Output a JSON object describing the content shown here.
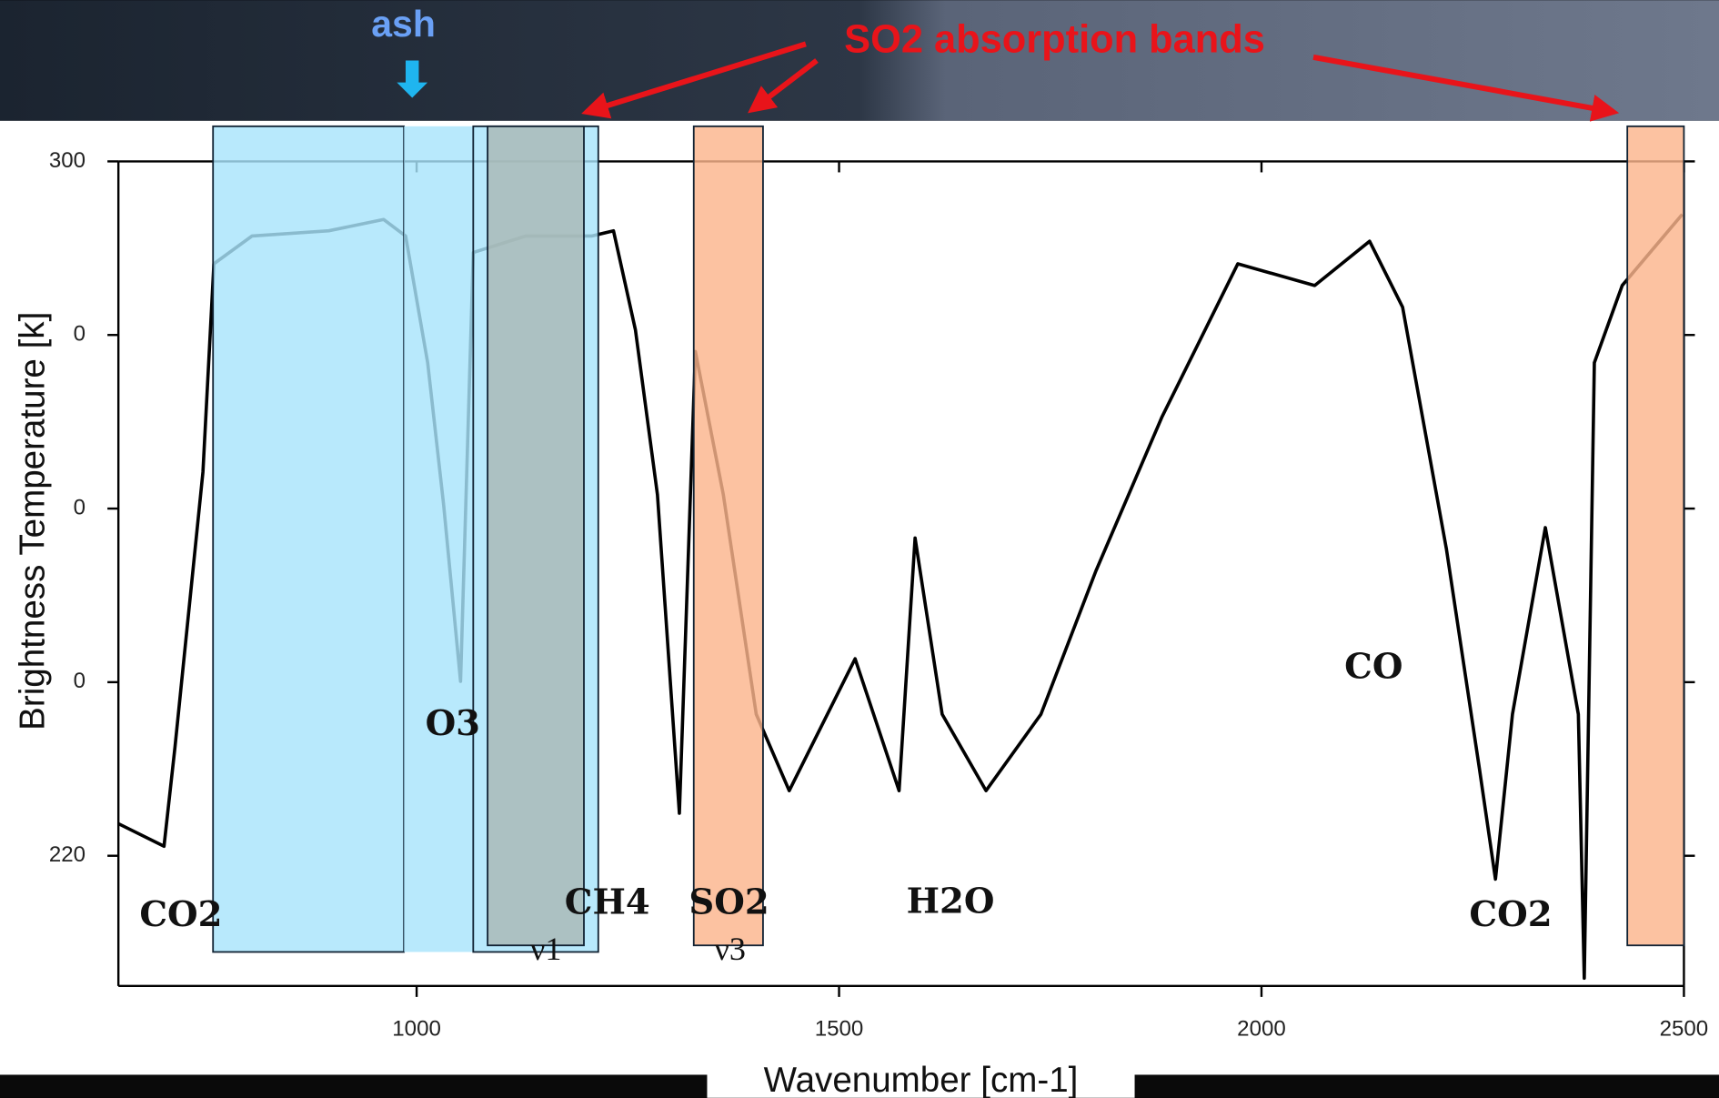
{
  "chart_data": {
    "type": "line",
    "title": "SO2 absorption bands",
    "top_label": "ash",
    "x_label": "Wavenumber [cm-1]",
    "y_label": "Brightness Temperature [k]",
    "xlim": [
      647,
      2500
    ],
    "ylim": [
      205,
      300
    ],
    "xticks": [
      1000,
      1500,
      2000,
      2500
    ],
    "yticks": [
      300,
      {
        "value": 280,
        "label": "0"
      },
      {
        "value": 260,
        "label": "0"
      },
      {
        "value": 240,
        "label": "0"
      },
      220
    ],
    "x": [
      647,
      701,
      714,
      747,
      760,
      805,
      896,
      961,
      987,
      1013,
      1032,
      1052,
      1067,
      1129,
      1207,
      1233,
      1259,
      1285,
      1311,
      1330,
      1363,
      1402,
      1441,
      1519,
      1571,
      1590,
      1622,
      1674,
      1739,
      1804,
      1882,
      1972,
      2063,
      2128,
      2167,
      2219,
      2258,
      2277,
      2297,
      2336,
      2375,
      2382,
      2394,
      2427,
      2498
    ],
    "series": [
      {
        "color": "#000000",
        "values": [
          223.7,
          221.1,
          232.5,
          264.2,
          288.2,
          291.4,
          292.0,
          293.3,
          291.4,
          276.8,
          260.4,
          240.1,
          289.5,
          291.4,
          291.4,
          292.0,
          280.6,
          261.6,
          224.9,
          278.1,
          261.6,
          236.3,
          227.5,
          242.7,
          227.5,
          256.6,
          236.3,
          227.5,
          236.3,
          252.8,
          270.5,
          288.2,
          285.7,
          290.8,
          283.2,
          255.3,
          230.0,
          217.3,
          236.3,
          257.8,
          236.3,
          205.9,
          276.8,
          285.7,
          293.9
        ]
      }
    ],
    "bands": [
      {
        "x": [
          759,
          985
        ],
        "color": "#a8e4fb"
      },
      {
        "x": [
          985,
          1067
        ],
        "color": "#a8e4fb"
      },
      {
        "x": [
          1067,
          1215
        ],
        "color": "#a8e4fb"
      },
      {
        "x": [
          1084,
          1198
        ],
        "color": "#a9b8b4"
      },
      {
        "x": [
          1328,
          1410
        ],
        "color": "#fbb58c"
      },
      {
        "x": [
          2433,
          2500
        ],
        "color": "#fbb58c"
      }
    ],
    "annotations": [
      "CO2",
      "O3",
      "CH4",
      "SO2",
      "H2O",
      "CO",
      "CO2",
      "ν1",
      "ν3"
    ]
  }
}
